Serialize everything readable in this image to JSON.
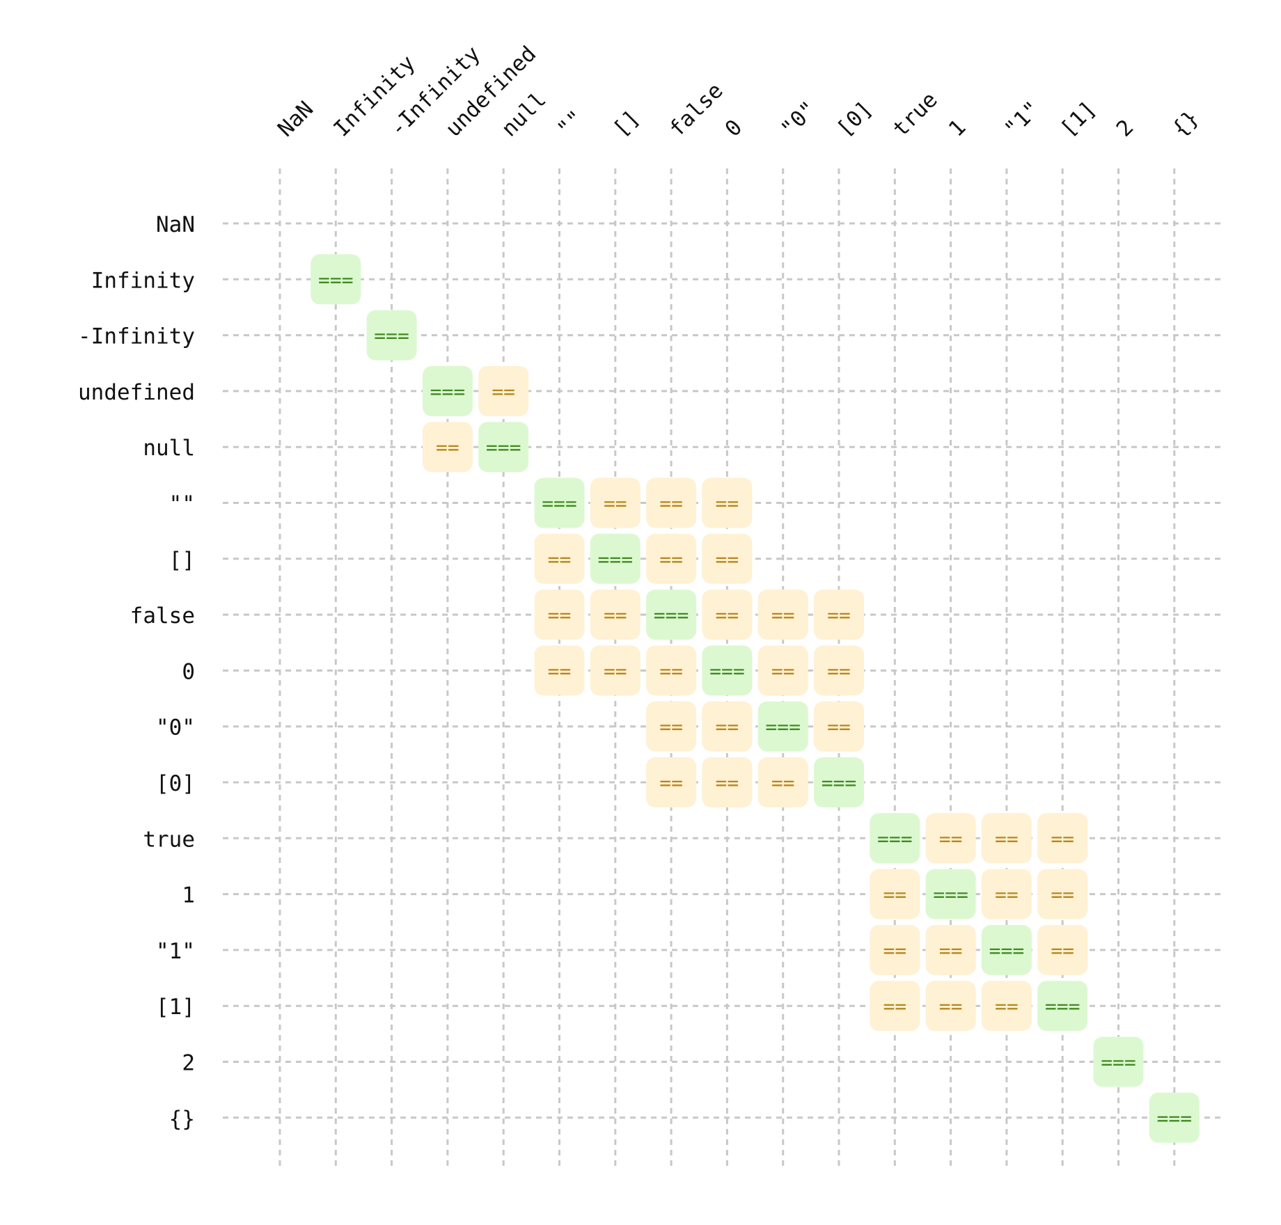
{
  "chart_data": {
    "type": "heatmap",
    "categories": [
      "NaN",
      "Infinity",
      "-Infinity",
      "undefined",
      "null",
      "\"\"",
      "[]",
      "false",
      "0",
      "\"0\"",
      "[0]",
      "true",
      "1",
      "\"1\"",
      "[1]",
      "2",
      "{}"
    ],
    "legend": [
      {
        "label": "===",
        "color": "#dcf8d0",
        "text_color": "#3f8a22"
      },
      {
        "label": "==",
        "color": "#fff1d3",
        "text_color": "#b7861b"
      }
    ],
    "grid": true,
    "cells": [
      {
        "row": "Infinity",
        "col": "Infinity",
        "value": "==="
      },
      {
        "row": "-Infinity",
        "col": "-Infinity",
        "value": "==="
      },
      {
        "row": "undefined",
        "col": "undefined",
        "value": "==="
      },
      {
        "row": "undefined",
        "col": "null",
        "value": "=="
      },
      {
        "row": "null",
        "col": "undefined",
        "value": "=="
      },
      {
        "row": "null",
        "col": "null",
        "value": "==="
      },
      {
        "row": "\"\"",
        "col": "\"\"",
        "value": "==="
      },
      {
        "row": "\"\"",
        "col": "[]",
        "value": "=="
      },
      {
        "row": "\"\"",
        "col": "false",
        "value": "=="
      },
      {
        "row": "\"\"",
        "col": "0",
        "value": "=="
      },
      {
        "row": "[]",
        "col": "\"\"",
        "value": "=="
      },
      {
        "row": "[]",
        "col": "[]",
        "value": "==="
      },
      {
        "row": "[]",
        "col": "false",
        "value": "=="
      },
      {
        "row": "[]",
        "col": "0",
        "value": "=="
      },
      {
        "row": "false",
        "col": "\"\"",
        "value": "=="
      },
      {
        "row": "false",
        "col": "[]",
        "value": "=="
      },
      {
        "row": "false",
        "col": "false",
        "value": "==="
      },
      {
        "row": "false",
        "col": "0",
        "value": "=="
      },
      {
        "row": "false",
        "col": "\"0\"",
        "value": "=="
      },
      {
        "row": "false",
        "col": "[0]",
        "value": "=="
      },
      {
        "row": "0",
        "col": "\"\"",
        "value": "=="
      },
      {
        "row": "0",
        "col": "[]",
        "value": "=="
      },
      {
        "row": "0",
        "col": "false",
        "value": "=="
      },
      {
        "row": "0",
        "col": "0",
        "value": "==="
      },
      {
        "row": "0",
        "col": "\"0\"",
        "value": "=="
      },
      {
        "row": "0",
        "col": "[0]",
        "value": "=="
      },
      {
        "row": "\"0\"",
        "col": "false",
        "value": "=="
      },
      {
        "row": "\"0\"",
        "col": "0",
        "value": "=="
      },
      {
        "row": "\"0\"",
        "col": "\"0\"",
        "value": "==="
      },
      {
        "row": "\"0\"",
        "col": "[0]",
        "value": "=="
      },
      {
        "row": "[0]",
        "col": "false",
        "value": "=="
      },
      {
        "row": "[0]",
        "col": "0",
        "value": "=="
      },
      {
        "row": "[0]",
        "col": "\"0\"",
        "value": "=="
      },
      {
        "row": "[0]",
        "col": "[0]",
        "value": "==="
      },
      {
        "row": "true",
        "col": "true",
        "value": "==="
      },
      {
        "row": "true",
        "col": "1",
        "value": "=="
      },
      {
        "row": "true",
        "col": "\"1\"",
        "value": "=="
      },
      {
        "row": "true",
        "col": "[1]",
        "value": "=="
      },
      {
        "row": "1",
        "col": "true",
        "value": "=="
      },
      {
        "row": "1",
        "col": "1",
        "value": "==="
      },
      {
        "row": "1",
        "col": "\"1\"",
        "value": "=="
      },
      {
        "row": "1",
        "col": "[1]",
        "value": "=="
      },
      {
        "row": "\"1\"",
        "col": "true",
        "value": "=="
      },
      {
        "row": "\"1\"",
        "col": "1",
        "value": "=="
      },
      {
        "row": "\"1\"",
        "col": "\"1\"",
        "value": "==="
      },
      {
        "row": "\"1\"",
        "col": "[1]",
        "value": "=="
      },
      {
        "row": "[1]",
        "col": "true",
        "value": "=="
      },
      {
        "row": "[1]",
        "col": "1",
        "value": "=="
      },
      {
        "row": "[1]",
        "col": "\"1\"",
        "value": "=="
      },
      {
        "row": "[1]",
        "col": "[1]",
        "value": "==="
      },
      {
        "row": "2",
        "col": "2",
        "value": "==="
      },
      {
        "row": "{}",
        "col": "{}",
        "value": "==="
      }
    ]
  }
}
